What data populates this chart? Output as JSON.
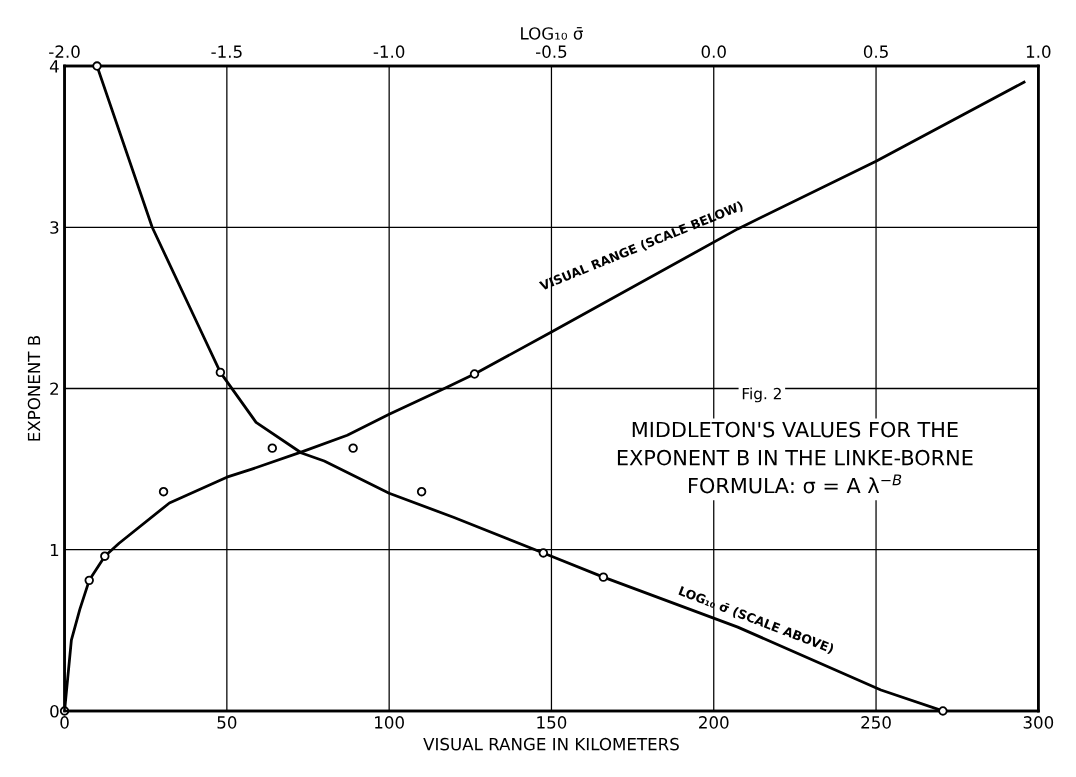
{
  "chart_data": {
    "type": "line",
    "xlabel": "VISUAL RANGE IN KILOMETERS",
    "ylabel": "EXPONENT B",
    "x2label": "LOG₁₀ σ̄",
    "xlim": [
      0,
      300
    ],
    "xticks": [
      0,
      50,
      100,
      150,
      200,
      250,
      300
    ],
    "x2lim": [
      -2.0,
      1.0
    ],
    "x2ticks": [
      {
        "value": -2,
        "label": "-2.0"
      },
      -1.5,
      {
        "value": -1,
        "label": "-1.0"
      },
      -0.5,
      {
        "value": 0,
        "label": "0.0"
      },
      0.5,
      {
        "value": 1,
        "label": "1.0"
      }
    ],
    "ylim": [
      0,
      4
    ],
    "yticks": [
      0,
      1,
      2,
      3,
      4
    ],
    "grid": true,
    "line_style": "solid",
    "series": [
      {
        "color": "#000000",
        "marker": "none",
        "x": [
          0,
          2.1,
          4.7,
          7.6,
          12.4,
          16.8,
          32.3,
          50,
          57.7,
          73.5,
          87.1,
          100,
          117,
          126.3,
          150,
          207.4,
          250,
          295.6
        ],
        "values": [
          0,
          0.44,
          0.63,
          0.81,
          0.96,
          1.04,
          1.29,
          1.45,
          1.5,
          1.61,
          1.71,
          1.84,
          2.0,
          2.09,
          2.35,
          2.99,
          3.41,
          3.9
        ]
      },
      {
        "axis": "x2",
        "color": "#000000",
        "marker": "none",
        "x": [
          -1.9,
          -1.73,
          -1.59,
          -1.52,
          -1.41,
          -1.27,
          -1.2,
          -1.0,
          -0.8,
          -0.525,
          -0.34,
          0.074,
          0.515,
          0.706
        ],
        "values": [
          4.0,
          3.0,
          2.4,
          2.1,
          1.79,
          1.6,
          1.55,
          1.35,
          1.2,
          0.98,
          0.83,
          0.52,
          0.13,
          0
        ]
      },
      {
        "type": "scatter",
        "color": "#000000",
        "marker": "circle",
        "x": [
          0,
          7.6,
          12.4,
          126.3
        ],
        "values": [
          0,
          0.81,
          0.96,
          2.09
        ]
      },
      {
        "type": "scatter",
        "axis": "x2",
        "color": "#000000",
        "marker": "circle",
        "x": [
          -1.9,
          -1.52,
          -0.525,
          -0.34,
          0.706
        ],
        "values": [
          4.0,
          2.1,
          0.98,
          0.83,
          0
        ]
      },
      {
        "type": "scatter",
        "color": "#000000",
        "marker": "circle",
        "x": [
          30.5,
          88.9
        ],
        "values": [
          1.36,
          1.63
        ]
      },
      {
        "type": "scatter",
        "axis": "x2",
        "color": "#000000",
        "marker": "circle",
        "x": [
          -1.36,
          -0.9
        ],
        "values": [
          1.63,
          1.36
        ]
      }
    ],
    "annotations": [
      "VISUAL RANGE (SCALE BELOW)",
      "LOG₁₀ σ̄ (SCALE ABOVE)",
      "Fig. 2",
      "MIDDLETON'S VALUES FOR THE\nEXPONENT B IN THE LINKE-BORNE\nFORMULA: σ = A λ$^{−B}$"
    ]
  }
}
